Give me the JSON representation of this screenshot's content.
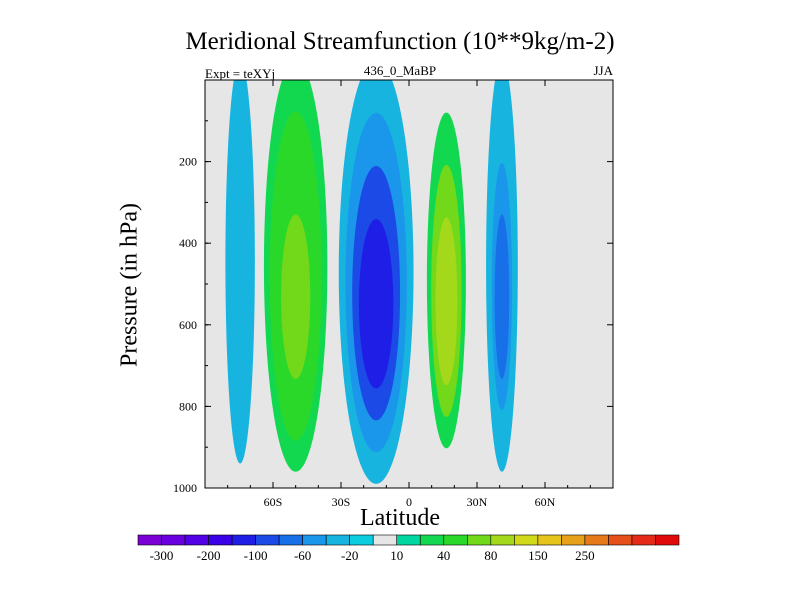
{
  "chart_data": {
    "type": "heatmap",
    "title": "Meridional Streamfunction (10**9kg/m-2)",
    "subtitle_left": "Expt = teXYj",
    "subtitle_center": "436_0_MaBP",
    "subtitle_right": "JJA",
    "xlabel": "Latitude",
    "ylabel": "Pressure (in hPa)",
    "x_range": [
      -90,
      90
    ],
    "y_range": [
      0,
      1000
    ],
    "y_reversed": true,
    "x_ticks": [
      {
        "value": -60,
        "label": "60S"
      },
      {
        "value": -30,
        "label": "30S"
      },
      {
        "value": 0,
        "label": "0"
      },
      {
        "value": 30,
        "label": "30N"
      },
      {
        "value": 60,
        "label": "60N"
      }
    ],
    "y_ticks": [
      {
        "value": 200,
        "label": "200"
      },
      {
        "value": 400,
        "label": "400"
      },
      {
        "value": 600,
        "label": "600"
      },
      {
        "value": 800,
        "label": "800"
      },
      {
        "value": 1000,
        "label": "1000"
      }
    ],
    "background_color": "#e6e6e6",
    "colorbar": {
      "colors": [
        "#7a00d6",
        "#6a00e0",
        "#5200e6",
        "#3a00e8",
        "#1e1ee6",
        "#1c4ae6",
        "#1870e8",
        "#1a96ea",
        "#18b4e0",
        "#0ccce0",
        "#e6e6e6",
        "#00d6a0",
        "#12d850",
        "#2ad82a",
        "#72d81a",
        "#a4d81a",
        "#d2d81a",
        "#e6c41a",
        "#e6a01a",
        "#e67a1a",
        "#e6501a",
        "#e62a18",
        "#e00a0a"
      ],
      "labels": [
        "-300",
        "-200",
        "-100",
        "-60",
        "-20",
        "10",
        "40",
        "80",
        "150",
        "250"
      ]
    },
    "regions": [
      {
        "name": "sh-polar-cell",
        "band": "negative",
        "value": -20,
        "core_value": -20,
        "lat_min": -81,
        "lat_max": -68,
        "p_top": 0,
        "p_bottom": 940
      },
      {
        "name": "sh-ferrel-cell",
        "band": "positive",
        "value": 30,
        "core_value": 75,
        "lat_min": -64,
        "lat_max": -36,
        "p_top": 0,
        "p_bottom": 960
      },
      {
        "name": "sh-hadley-cell",
        "band": "negative",
        "value": -20,
        "core_value": -130,
        "lat_min": -31,
        "lat_max": 2,
        "p_top": 0,
        "p_bottom": 990
      },
      {
        "name": "nh-hadley-cell",
        "band": "positive",
        "value": 10,
        "core_value": 90,
        "lat_min": 6,
        "lat_max": 27,
        "p_top": 0,
        "p_bottom": 980
      },
      {
        "name": "nh-ferrel-cell",
        "band": "negative",
        "value": -20,
        "core_value": -60,
        "lat_min": 34,
        "lat_max": 48,
        "p_top": 0,
        "p_bottom": 960
      }
    ]
  }
}
